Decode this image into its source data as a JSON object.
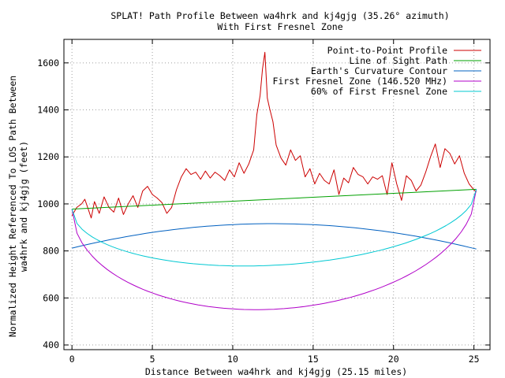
{
  "chart_data": {
    "type": "line",
    "title_line1": "SPLAT! Path Profile Between wa4hrk and kj4gjg (35.26° azimuth)",
    "title_line2": "With First Fresnel Zone",
    "xlabel": "Distance Between wa4hrk and kj4gjg (25.15 miles)",
    "ylabel_line1": "Normalized Height Referenced To LOS Path Between",
    "ylabel_line2": "wa4hrk and kj4gjg (feet)",
    "xlim": [
      -0.5,
      26
    ],
    "ylim": [
      380,
      1700
    ],
    "xticks": [
      0,
      5,
      10,
      15,
      20,
      25
    ],
    "yticks": [
      400,
      600,
      800,
      1000,
      1200,
      1400,
      1600
    ],
    "grid": true,
    "legend_position": "top-right",
    "series": [
      {
        "name": "Point-to-Point Profile",
        "color": "#cc0000",
        "x": [
          0,
          0.3,
          0.6,
          0.8,
          1.0,
          1.2,
          1.4,
          1.7,
          2.0,
          2.3,
          2.6,
          2.9,
          3.2,
          3.5,
          3.8,
          4.1,
          4.4,
          4.7,
          5.0,
          5.3,
          5.6,
          5.9,
          6.2,
          6.5,
          6.8,
          7.1,
          7.4,
          7.7,
          8.0,
          8.3,
          8.6,
          8.9,
          9.2,
          9.5,
          9.8,
          10.1,
          10.4,
          10.7,
          11.0,
          11.3,
          11.5,
          11.7,
          11.85,
          12.0,
          12.15,
          12.3,
          12.5,
          12.7,
          13.0,
          13.3,
          13.6,
          13.9,
          14.2,
          14.5,
          14.8,
          15.1,
          15.4,
          15.7,
          16.0,
          16.3,
          16.6,
          16.9,
          17.2,
          17.5,
          17.8,
          18.1,
          18.4,
          18.7,
          19.0,
          19.3,
          19.6,
          19.9,
          20.2,
          20.5,
          20.8,
          21.1,
          21.4,
          21.7,
          22.0,
          22.3,
          22.6,
          22.9,
          23.2,
          23.5,
          23.8,
          24.1,
          24.4,
          24.7,
          25.0,
          25.15
        ],
        "y": [
          950,
          985,
          1000,
          1020,
          980,
          940,
          1010,
          960,
          1030,
          985,
          965,
          1025,
          955,
          1000,
          1035,
          985,
          1055,
          1075,
          1040,
          1025,
          1005,
          960,
          985,
          1060,
          1115,
          1150,
          1125,
          1135,
          1105,
          1140,
          1110,
          1135,
          1120,
          1100,
          1145,
          1115,
          1175,
          1130,
          1170,
          1230,
          1380,
          1460,
          1575,
          1645,
          1450,
          1405,
          1350,
          1250,
          1195,
          1165,
          1230,
          1185,
          1205,
          1115,
          1150,
          1085,
          1130,
          1100,
          1085,
          1145,
          1040,
          1110,
          1090,
          1155,
          1125,
          1115,
          1085,
          1115,
          1105,
          1120,
          1040,
          1175,
          1085,
          1015,
          1120,
          1100,
          1055,
          1080,
          1135,
          1200,
          1255,
          1155,
          1235,
          1215,
          1170,
          1205,
          1130,
          1085,
          1060,
          1050
        ]
      },
      {
        "name": "Line of Sight Path",
        "color": "#00a000",
        "x": [
          0,
          25.15
        ],
        "y": [
          978,
          1062
        ]
      },
      {
        "name": "Earth's Curvature Contour",
        "color": "#0060c0",
        "shape": "curvature",
        "x_start": 0,
        "x_end": 25.15,
        "y_start": 812,
        "y_mid": 916,
        "y_end": 808
      },
      {
        "name": "First Fresnel Zone (146.520 MHz)",
        "color": "#b000c8",
        "shape": "fresnel",
        "x_start": 0,
        "x_end": 25.15,
        "y_start": 978,
        "y_end": 1062,
        "radius_mid": 468
      },
      {
        "name": "60% of First Fresnel Zone",
        "color": "#00c8d2",
        "shape": "fresnel",
        "x_start": 0,
        "x_end": 25.15,
        "y_start": 978,
        "y_end": 1062,
        "radius_mid": 281
      }
    ]
  }
}
